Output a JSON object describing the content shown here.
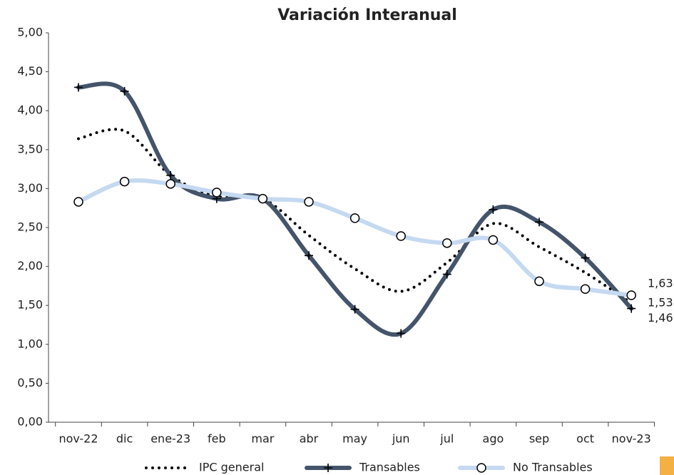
{
  "chart_data": {
    "type": "line",
    "title": "Variación Interanual",
    "categories": [
      "nov-22",
      "dic",
      "ene-23",
      "feb",
      "mar",
      "abr",
      "may",
      "jun",
      "jul",
      "ago",
      "sep",
      "oct",
      "nov-23"
    ],
    "series": [
      {
        "name": "IPC general",
        "color": "#000000",
        "style": "dotted",
        "marker": "none",
        "values": [
          3.64,
          3.74,
          3.17,
          2.9,
          2.87,
          2.4,
          1.97,
          1.68,
          2.05,
          2.55,
          2.25,
          1.92,
          1.53
        ],
        "value_labels": [
          null,
          null,
          null,
          null,
          null,
          null,
          null,
          null,
          null,
          null,
          null,
          null,
          "1,53"
        ]
      },
      {
        "name": "Transables",
        "color": "#44546a",
        "style": "solid",
        "marker": "plus",
        "values": [
          4.3,
          4.25,
          3.17,
          2.87,
          2.87,
          2.14,
          1.45,
          1.14,
          1.9,
          2.73,
          2.57,
          2.11,
          1.46
        ],
        "value_labels": [
          null,
          null,
          null,
          null,
          null,
          null,
          null,
          null,
          null,
          null,
          null,
          null,
          "1,46"
        ]
      },
      {
        "name": "No Transables",
        "color": "#c5d9f1",
        "style": "solid",
        "marker": "circle",
        "values": [
          2.83,
          3.09,
          3.06,
          2.95,
          2.87,
          2.83,
          2.62,
          2.39,
          2.3,
          2.34,
          1.81,
          1.71,
          1.63
        ],
        "value_labels": [
          null,
          null,
          null,
          null,
          null,
          null,
          null,
          null,
          null,
          null,
          null,
          null,
          "1,63"
        ]
      }
    ],
    "ylim": [
      0,
      5
    ],
    "yticks": [
      {
        "value": 0,
        "label": "0,00"
      },
      {
        "value": 0.5,
        "label": "0,50"
      },
      {
        "value": 1,
        "label": "1,00"
      },
      {
        "value": 1.5,
        "label": "1,50"
      },
      {
        "value": 2,
        "label": "2,00"
      },
      {
        "value": 2.5,
        "label": "2,50"
      },
      {
        "value": 3,
        "label": "3,00"
      },
      {
        "value": 3.5,
        "label": "3,50"
      },
      {
        "value": 4,
        "label": "4,00"
      },
      {
        "value": 4.5,
        "label": "4,50"
      },
      {
        "value": 5,
        "label": "5,00"
      }
    ],
    "grid": false,
    "legend": "bottom"
  }
}
